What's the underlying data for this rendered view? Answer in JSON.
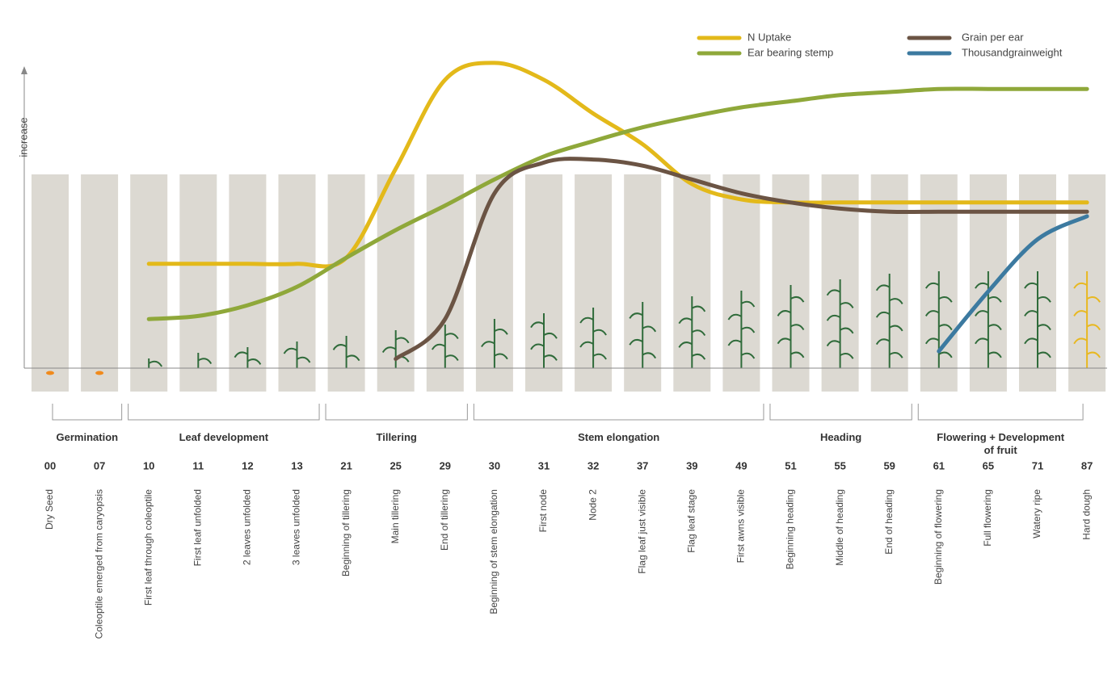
{
  "chart_data": {
    "type": "line",
    "y_label": "increase",
    "ylim": [
      0,
      100
    ],
    "legend": "top-right",
    "phases": [
      {
        "label": "Germination",
        "stages": [
          {
            "code": "00",
            "name": "Dry Seed"
          },
          {
            "code": "07",
            "name": "Coleoptile emerged from caryopsis"
          }
        ]
      },
      {
        "label": "Leaf development",
        "stages": [
          {
            "code": "10",
            "name": "First leaf through coleoptile"
          },
          {
            "code": "11",
            "name": "First leaf unfolded"
          },
          {
            "code": "12",
            "name": "2 leaves unfolded"
          },
          {
            "code": "13",
            "name": "3 leaves unfolded"
          }
        ]
      },
      {
        "label": "Tillering",
        "stages": [
          {
            "code": "21",
            "name": "Beginning of tillering"
          },
          {
            "code": "25",
            "name": "Main tillering"
          },
          {
            "code": "29",
            "name": "End of tillering"
          }
        ]
      },
      {
        "label": "Stem elongation",
        "stages": [
          {
            "code": "30",
            "name": "Beginning of stem elongation"
          },
          {
            "code": "31",
            "name": "First node"
          },
          {
            "code": "32",
            "name": "Node 2"
          },
          {
            "code": "37",
            "name": "Flag leaf just visible"
          },
          {
            "code": "39",
            "name": "Flag leaf stage"
          },
          {
            "code": "49",
            "name": "First awns visible"
          }
        ]
      },
      {
        "label": "Heading",
        "stages": [
          {
            "code": "51",
            "name": "Beginning heading"
          },
          {
            "code": "55",
            "name": "Middle of heading"
          },
          {
            "code": "59",
            "name": "End of heading"
          }
        ]
      },
      {
        "label": "Flowering + Development of fruit",
        "stages": [
          {
            "code": "61",
            "name": "Beginning of flowering"
          },
          {
            "code": "65",
            "name": "Full flowering"
          },
          {
            "code": "71",
            "name": "Watery ripe"
          },
          {
            "code": "87",
            "name": "Hard dough"
          }
        ]
      }
    ],
    "series": [
      {
        "name": "N Uptake",
        "color": "#e3b91a",
        "values": [
          null,
          null,
          34,
          34,
          34,
          34,
          36,
          65,
          94,
          99.5,
          94,
          83,
          73,
          60,
          55,
          54,
          54,
          54,
          54,
          54,
          54,
          54
        ]
      },
      {
        "name": "Ear bearing stemp",
        "color": "#8fa83a",
        "values": [
          null,
          null,
          16,
          17,
          20.5,
          26.5,
          36,
          45,
          53,
          61.5,
          69,
          74,
          78.5,
          82,
          85,
          87,
          89,
          90,
          91,
          91,
          91,
          91
        ]
      },
      {
        "name": "Grain per ear",
        "color": "#6b5444",
        "values": [
          null,
          null,
          null,
          null,
          null,
          null,
          null,
          3,
          16,
          57,
          67,
          68,
          66,
          61.5,
          57,
          54,
          52,
          51,
          51,
          51,
          51,
          51
        ]
      },
      {
        "name": "Thousandgrainweight",
        "color": "#3c7aa0",
        "values": [
          null,
          null,
          null,
          null,
          null,
          null,
          null,
          null,
          null,
          null,
          null,
          null,
          null,
          null,
          null,
          null,
          null,
          null,
          5.5,
          25,
          42,
          49.5
        ]
      }
    ]
  }
}
